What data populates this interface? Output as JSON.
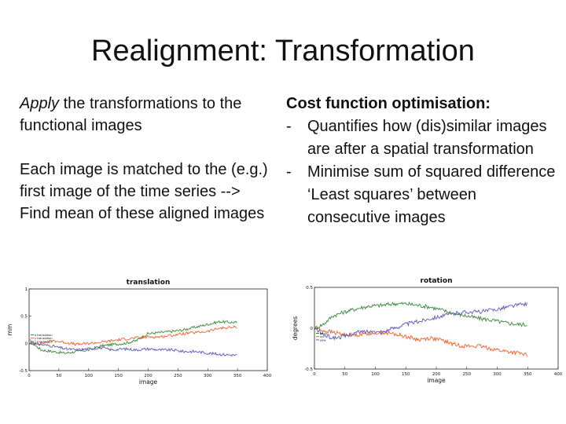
{
  "slide": {
    "title": "Realignment: Transformation"
  },
  "left": {
    "p1_italic": "Apply",
    "p1_rest": " the transformations to the functional images",
    "p2": "Each image is matched to the (e.g.) first image of the time series --> Find mean of these aligned images"
  },
  "right": {
    "heading": "Cost function optimisation:",
    "bullets": [
      "Quantifies how (dis)similar images are after a spatial transformation",
      "Minimise sum of squared difference ‘Least squares’ between consecutive images"
    ],
    "dash": "-"
  },
  "chart_data": [
    {
      "type": "line",
      "title": "translation",
      "xlabel": "image",
      "ylabel": "mm",
      "xlim": [
        0,
        400
      ],
      "ylim": [
        -0.5,
        1
      ],
      "xticks": [
        0,
        50,
        100,
        150,
        200,
        250,
        300,
        350,
        400
      ],
      "yticks": [
        -0.5,
        0,
        0.5,
        1
      ],
      "ytick_labels": [
        "-0.5",
        "0",
        "0.5",
        "1"
      ],
      "legend": [
        "x translation",
        "y translation",
        "z translation"
      ],
      "legend_position": "left",
      "series": [
        {
          "name": "x translation",
          "color": "#3a8a3a",
          "x": [
            1,
            20,
            40,
            60,
            80,
            100,
            120,
            140,
            160,
            180,
            200,
            220,
            240,
            260,
            280,
            300,
            320,
            350
          ],
          "y": [
            0.05,
            -0.12,
            -0.15,
            -0.18,
            -0.15,
            -0.12,
            -0.05,
            -0.02,
            0.0,
            0.05,
            0.18,
            0.2,
            0.22,
            0.25,
            0.3,
            0.35,
            0.4,
            0.38
          ]
        },
        {
          "name": "y translation",
          "color": "#e8622c",
          "x": [
            1,
            20,
            40,
            60,
            80,
            100,
            120,
            140,
            160,
            180,
            200,
            220,
            240,
            260,
            280,
            300,
            320,
            350
          ],
          "y": [
            0.0,
            0.0,
            0.05,
            0.02,
            -0.02,
            0.0,
            0.02,
            0.05,
            0.08,
            0.1,
            0.12,
            0.12,
            0.15,
            0.18,
            0.2,
            0.22,
            0.28,
            0.3
          ]
        },
        {
          "name": "z translation",
          "color": "#5a5ab8",
          "x": [
            1,
            20,
            40,
            60,
            80,
            100,
            120,
            140,
            160,
            180,
            200,
            220,
            240,
            260,
            280,
            300,
            320,
            350
          ],
          "y": [
            0.0,
            -0.02,
            -0.05,
            -0.1,
            -0.12,
            -0.1,
            -0.08,
            -0.12,
            -0.1,
            -0.12,
            -0.1,
            -0.12,
            -0.12,
            -0.15,
            -0.15,
            -0.18,
            -0.2,
            -0.22
          ]
        }
      ]
    },
    {
      "type": "line",
      "title": "rotation",
      "xlabel": "image",
      "ylabel": "degrees",
      "xlim": [
        0,
        400
      ],
      "ylim": [
        -0.5,
        0.5
      ],
      "xticks": [
        0,
        50,
        100,
        150,
        200,
        250,
        300,
        350,
        400
      ],
      "yticks": [
        -0.5,
        0,
        0.5
      ],
      "ytick_labels": [
        "-0.5",
        "0",
        "0.5"
      ],
      "legend": [
        "pitch",
        "roll",
        "yaw"
      ],
      "legend_position": "left",
      "series": [
        {
          "name": "pitch",
          "color": "#3a8a3a",
          "x": [
            1,
            15,
            30,
            50,
            70,
            90,
            110,
            130,
            150,
            170,
            190,
            210,
            230,
            250,
            270,
            290,
            310,
            330,
            350
          ],
          "y": [
            0.0,
            0.05,
            0.15,
            0.2,
            0.24,
            0.27,
            0.28,
            0.3,
            0.3,
            0.28,
            0.26,
            0.22,
            0.18,
            0.15,
            0.12,
            0.1,
            0.07,
            0.05,
            0.04
          ]
        },
        {
          "name": "roll",
          "color": "#e8622c",
          "x": [
            1,
            15,
            30,
            50,
            70,
            90,
            110,
            130,
            150,
            170,
            190,
            210,
            230,
            250,
            270,
            290,
            310,
            330,
            350
          ],
          "y": [
            0.0,
            -0.03,
            -0.05,
            -0.08,
            -0.08,
            -0.06,
            -0.05,
            -0.07,
            -0.1,
            -0.14,
            -0.12,
            -0.15,
            -0.2,
            -0.22,
            -0.22,
            -0.25,
            -0.28,
            -0.3,
            -0.33
          ]
        },
        {
          "name": "yaw",
          "color": "#5a5ab8",
          "x": [
            1,
            15,
            30,
            50,
            70,
            90,
            110,
            130,
            150,
            170,
            190,
            210,
            230,
            250,
            270,
            290,
            310,
            330,
            350
          ],
          "y": [
            0.0,
            -0.08,
            -0.12,
            -0.1,
            -0.05,
            -0.04,
            -0.05,
            0.0,
            0.05,
            0.08,
            0.12,
            0.15,
            0.18,
            0.2,
            0.2,
            0.22,
            0.25,
            0.28,
            0.3
          ]
        }
      ]
    }
  ]
}
